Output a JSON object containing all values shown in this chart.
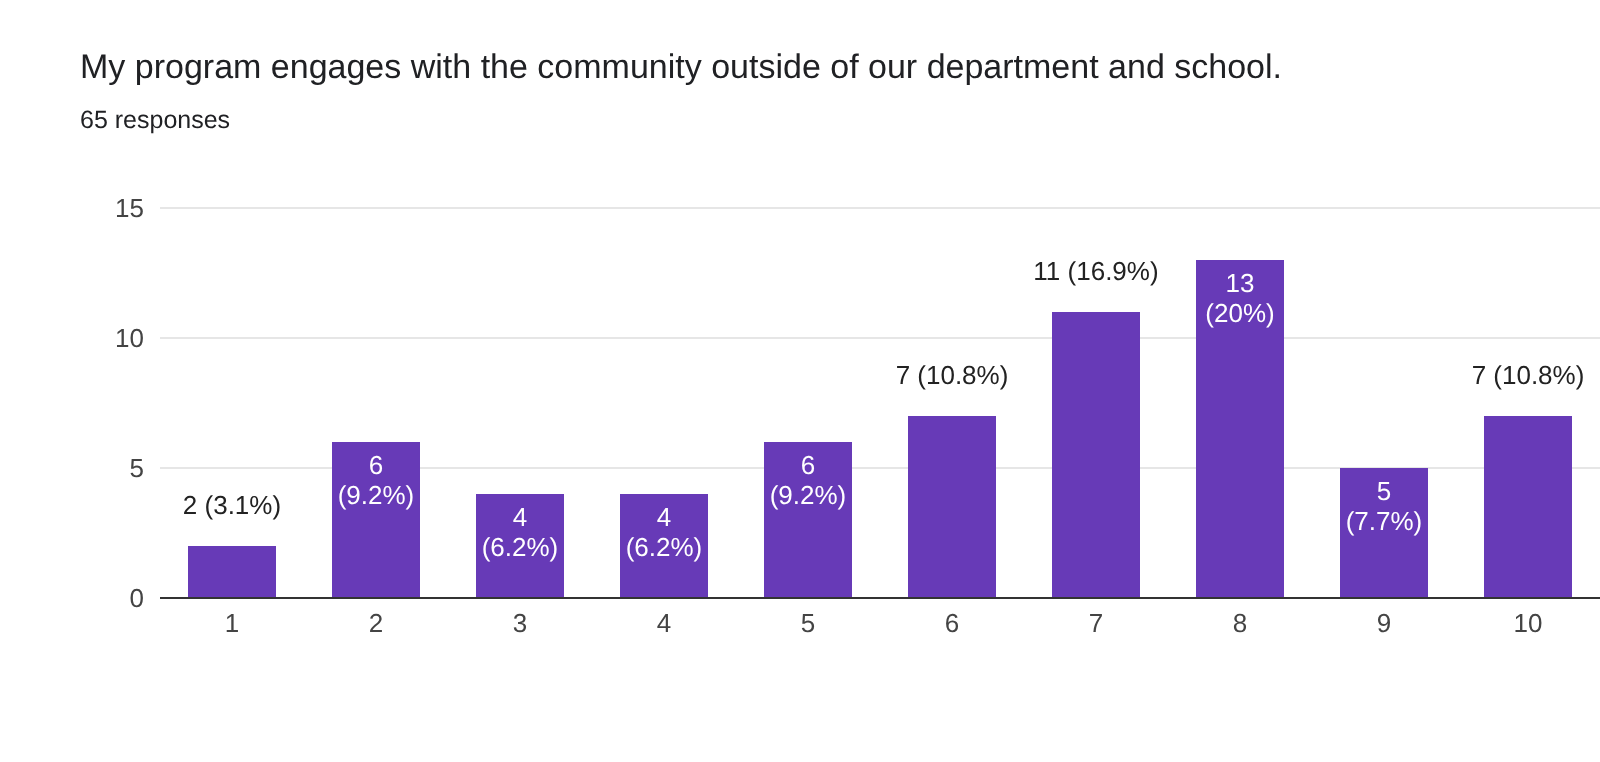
{
  "chart_data": {
    "type": "bar",
    "title": "My program engages with the community outside of our department and school.",
    "subtitle": "65 responses",
    "categories": [
      "1",
      "2",
      "3",
      "4",
      "5",
      "6",
      "7",
      "8",
      "9",
      "10"
    ],
    "values": [
      2,
      6,
      4,
      4,
      6,
      7,
      11,
      13,
      5,
      7
    ],
    "value_labels": [
      "2 (3.1%)",
      "6 (9.2%)",
      "4 (6.2%)",
      "4 (6.2%)",
      "6 (9.2%)",
      "7 (10.8%)",
      "11 (16.9%)",
      "13 (20%)",
      "5 (7.7%)",
      "7 (10.8%)"
    ],
    "color": "#673ab7",
    "ylim": [
      0,
      15
    ],
    "yticks": [
      0,
      5,
      10,
      15
    ],
    "grid": "y",
    "legend": false
  }
}
